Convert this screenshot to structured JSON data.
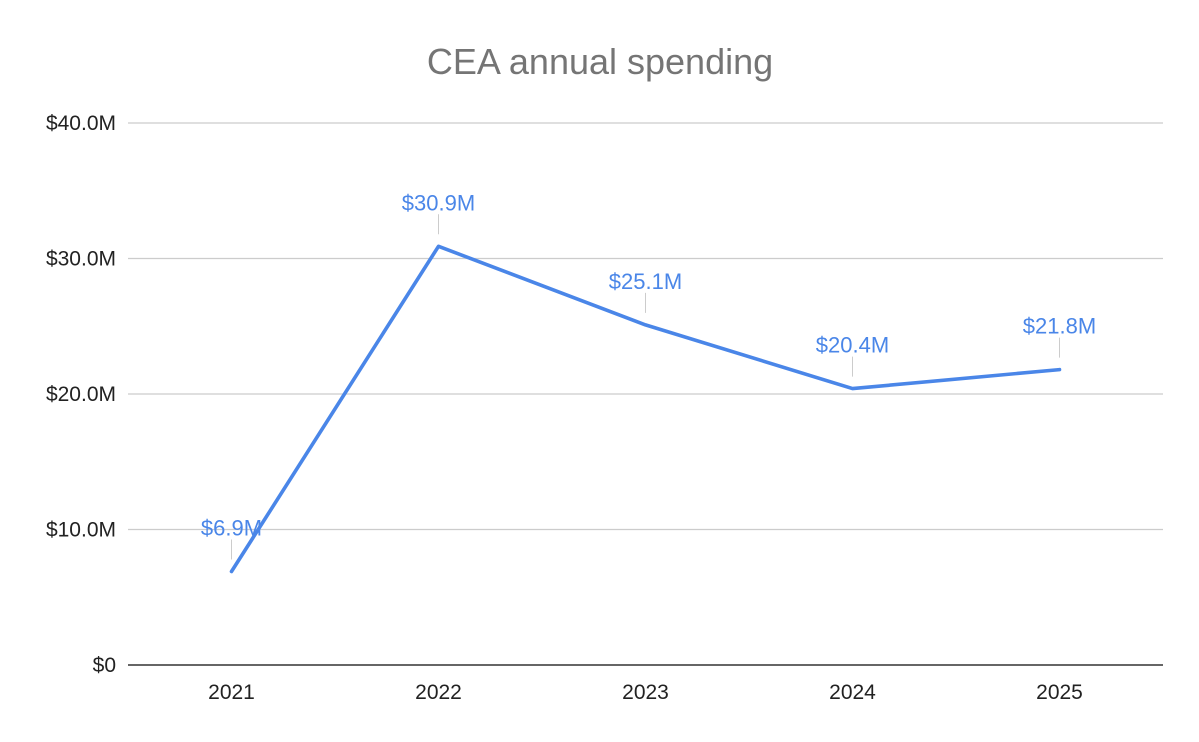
{
  "chart_data": {
    "type": "line",
    "title": "CEA annual spending",
    "xlabel": "",
    "ylabel": "",
    "categories": [
      "2021",
      "2022",
      "2023",
      "2024",
      "2025"
    ],
    "series": [
      {
        "name": "CEA annual spending",
        "values": [
          6.9,
          30.9,
          25.1,
          20.4,
          21.8
        ],
        "data_labels": [
          "$6.9M",
          "$30.9M",
          "$25.1M",
          "$20.4M",
          "$21.8M"
        ],
        "color": "#4a86e8"
      }
    ],
    "ylim": [
      0,
      40
    ],
    "yticks": [
      0,
      10,
      20,
      30,
      40
    ],
    "ytick_labels": [
      "$0",
      "$10.0M",
      "$20.0M",
      "$30.0M",
      "$40.0M"
    ],
    "grid": true,
    "legend": "none"
  }
}
